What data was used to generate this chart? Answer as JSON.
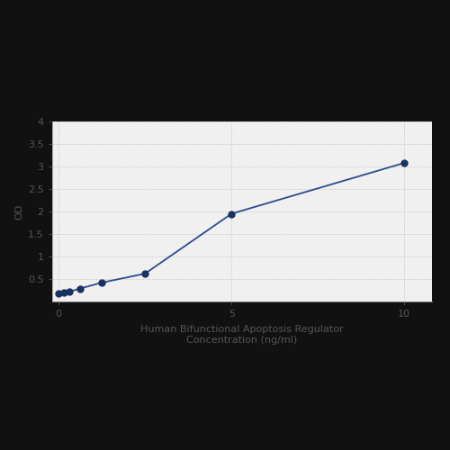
{
  "x": [
    0.0,
    0.156,
    0.3125,
    0.625,
    1.25,
    2.5,
    5.0,
    10.0
  ],
  "y": [
    0.175,
    0.195,
    0.22,
    0.29,
    0.42,
    0.62,
    1.95,
    3.08
  ],
  "line_color": "#2B4C8C",
  "marker_color": "#1a3260",
  "marker_size": 5,
  "line_width": 1.3,
  "xlabel_line1": "Human Bifunctional Apoptosis Regulator",
  "xlabel_line2": "Concentration (ng/ml)",
  "ylabel": "OD",
  "xlim": [
    -0.2,
    10.8
  ],
  "ylim": [
    0,
    4.0
  ],
  "xticks": [
    0,
    5,
    10
  ],
  "yticks": [
    0.5,
    1.0,
    1.5,
    2.0,
    2.5,
    3.0,
    3.5,
    4.0
  ],
  "grid_color": "#cccccc",
  "label_fontsize": 8,
  "tick_fontsize": 8,
  "figure_bg": "#111111",
  "plot_bg": "#f0f0f0"
}
